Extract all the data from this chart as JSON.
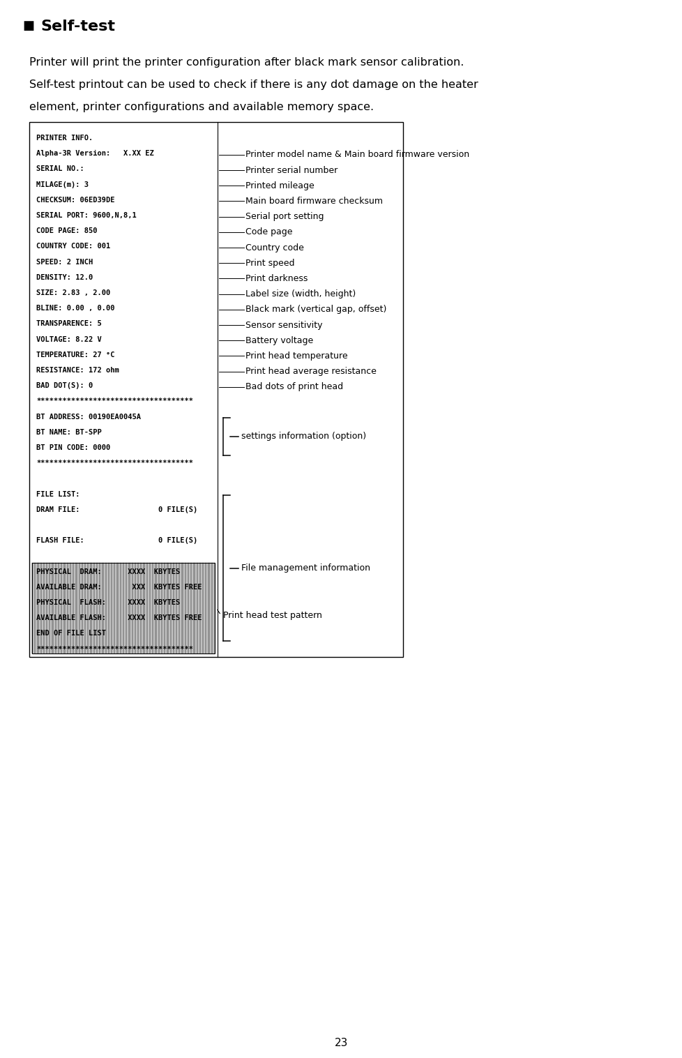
{
  "title": "Self-test",
  "bg_color": "#f5f5f0",
  "description_lines": [
    "Printer will print the printer configuration after black mark sensor calibration.",
    "Self-test printout can be used to check if there is any dot damage on the heater",
    "element, printer configurations and available memory space."
  ],
  "printer_output_lines": [
    "PRINTER INFO.",
    "Alpha-3R Version:   X.XX EZ",
    "SERIAL NO.:",
    "MILAGE(m): 3",
    "CHECKSUM: 06ED39DE",
    "SERIAL PORT: 9600,N,8,1",
    "CODE PAGE: 850",
    "COUNTRY CODE: 001",
    "SPEED: 2 INCH",
    "DENSITY: 12.0",
    "SIZE: 2.83 , 2.00",
    "BLINE: 0.00 , 0.00",
    "TRANSPARENCE: 5",
    "VOLTAGE: 8.22 V",
    "TEMPERATURE: 27 °C",
    "RESISTANCE: 172 ohm",
    "BAD DOT(S): 0",
    "************************************",
    "BT ADDRESS: 00190EA0045A",
    "BT NAME: BT-SPP",
    "BT PIN CODE: 0000",
    "************************************",
    "",
    "FILE LIST:",
    "DRAM FILE:                  0 FILE(S)",
    "",
    "FLASH FILE:                 0 FILE(S)",
    "",
    "PHYSICAL  DRAM:      XXXX  KBYTES",
    "AVAILABLE DRAM:       XXX  KBYTES FREE",
    "PHYSICAL  FLASH:     XXXX  KBYTES",
    "AVAILABLE FLASH:     XXXX  KBYTES FREE",
    "END OF FILE LIST",
    "************************************"
  ],
  "right_labels": [
    "Printer model name & Main board firmware version",
    "Printer serial number",
    "Printed mileage",
    "Main board firmware checksum",
    "Serial port setting",
    "Code page",
    "Country code",
    "Print speed",
    "Print darkness",
    "Label size (width, height)",
    "Black mark (vertical gap, offset)",
    "Sensor sensitivity",
    "Battery voltage",
    "Print head temperature",
    "Print head average resistance",
    "Bad dots of print head"
  ],
  "right_label_line_indices": [
    1,
    2,
    3,
    4,
    5,
    6,
    7,
    8,
    9,
    10,
    11,
    12,
    13,
    14,
    15,
    16
  ],
  "settings_label": "settings information (option)",
  "file_mgmt_label": "File management information",
  "printhead_label": "Print head test pattern",
  "page_number": "23"
}
